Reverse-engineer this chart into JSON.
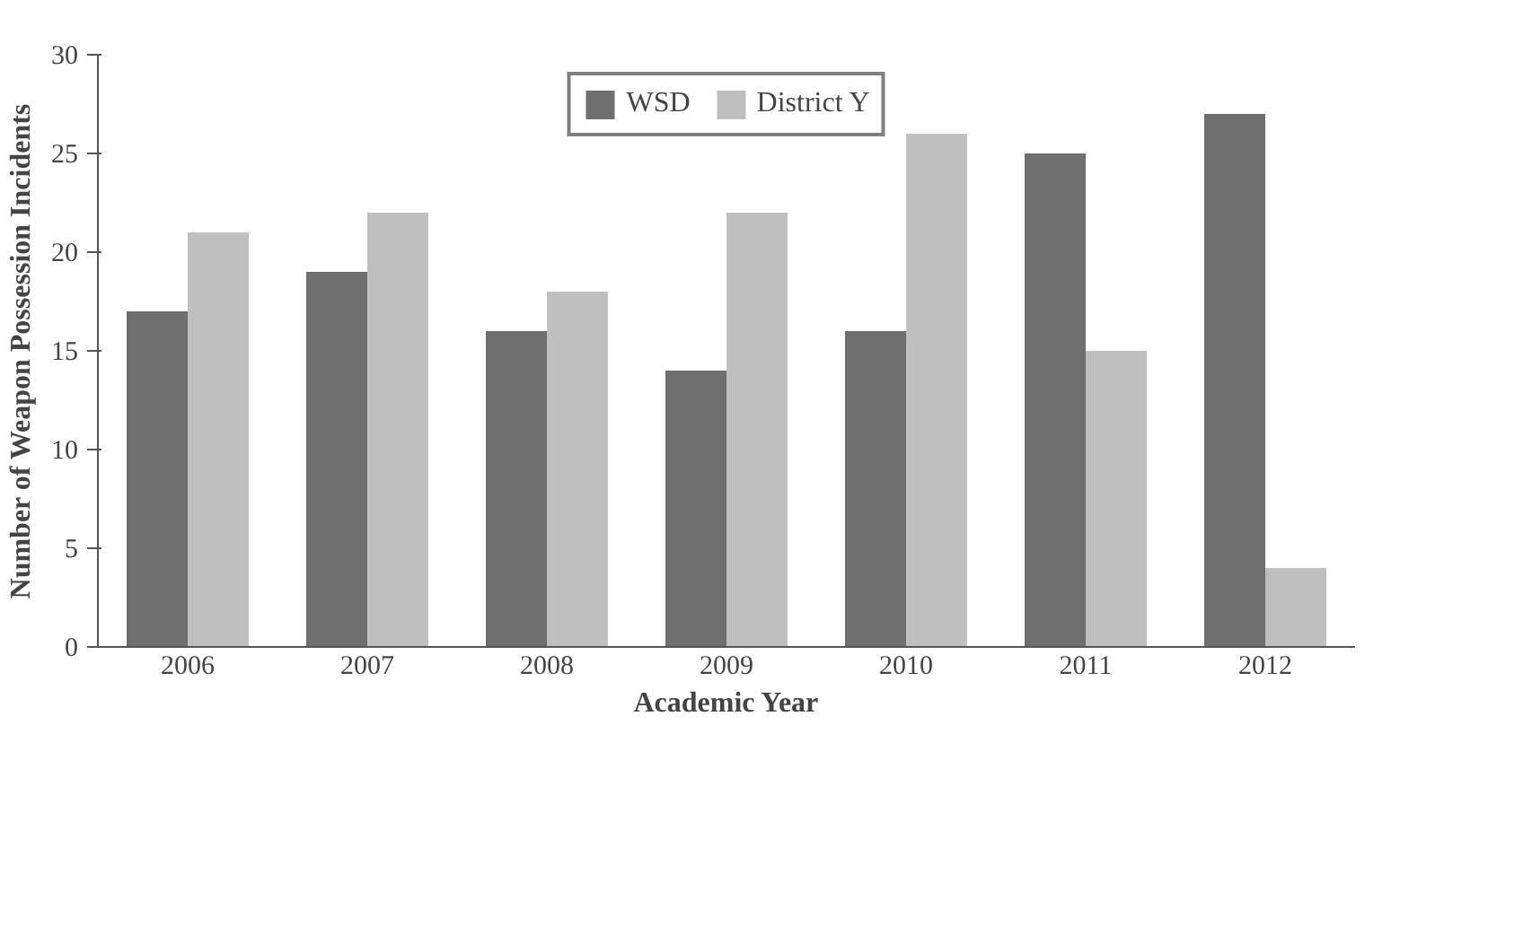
{
  "chart_data": {
    "type": "bar",
    "xlabel": "Academic Year",
    "ylabel": "Number of Weapon Possession Incidents",
    "categories": [
      "2006",
      "2007",
      "2008",
      "2009",
      "2010",
      "2011",
      "2012"
    ],
    "series": [
      {
        "name": "WSD",
        "color": "#6e6e6e",
        "values": [
          17,
          19,
          16,
          14,
          16,
          25,
          27
        ]
      },
      {
        "name": "District Y",
        "color": "#bfbfbf",
        "values": [
          21,
          22,
          18,
          22,
          26,
          15,
          4
        ]
      }
    ],
    "ylim": [
      0,
      30
    ],
    "yticks": [
      0,
      5,
      10,
      15,
      20,
      25,
      30
    ],
    "grid": false,
    "legend": "top"
  }
}
